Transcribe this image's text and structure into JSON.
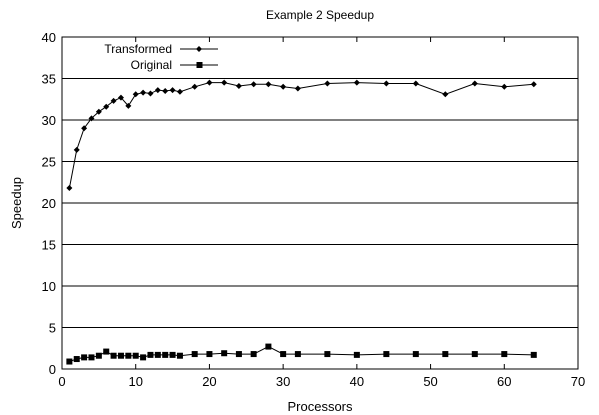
{
  "chart_data": {
    "type": "line",
    "title": "Example 2 Speedup",
    "xlabel": "Processors",
    "ylabel": "Speedup",
    "xlim": [
      0,
      70
    ],
    "ylim": [
      0,
      40
    ],
    "xticks": [
      0,
      10,
      20,
      30,
      40,
      50,
      60,
      70
    ],
    "yticks": [
      0,
      5,
      10,
      15,
      20,
      25,
      30,
      35,
      40
    ],
    "grid": "horizontal",
    "legend_position": "top-left",
    "series": [
      {
        "name": "Transformed",
        "marker": "diamond",
        "x": [
          1,
          2,
          3,
          4,
          5,
          6,
          7,
          8,
          9,
          10,
          11,
          12,
          13,
          14,
          15,
          16,
          18,
          20,
          22,
          24,
          26,
          28,
          30,
          32,
          36,
          40,
          44,
          48,
          52,
          56,
          60,
          64
        ],
        "y": [
          21.8,
          26.4,
          29.0,
          30.2,
          31.0,
          31.6,
          32.3,
          32.7,
          31.7,
          33.1,
          33.3,
          33.2,
          33.6,
          33.5,
          33.6,
          33.4,
          34.0,
          34.5,
          34.5,
          34.1,
          34.3,
          34.3,
          34.0,
          33.8,
          34.4,
          34.5,
          34.4,
          34.4,
          33.1,
          34.4,
          34.0,
          34.3
        ]
      },
      {
        "name": "Original",
        "marker": "square",
        "x": [
          1,
          2,
          3,
          4,
          5,
          6,
          7,
          8,
          9,
          10,
          11,
          12,
          13,
          14,
          15,
          16,
          18,
          20,
          22,
          24,
          26,
          28,
          30,
          32,
          36,
          40,
          44,
          48,
          52,
          56,
          60,
          64
        ],
        "y": [
          0.9,
          1.2,
          1.4,
          1.4,
          1.6,
          2.1,
          1.6,
          1.6,
          1.6,
          1.6,
          1.4,
          1.7,
          1.7,
          1.7,
          1.7,
          1.6,
          1.8,
          1.8,
          1.9,
          1.8,
          1.8,
          2.7,
          1.8,
          1.8,
          1.8,
          1.7,
          1.8,
          1.8,
          1.8,
          1.8,
          1.8,
          1.7
        ]
      }
    ]
  }
}
